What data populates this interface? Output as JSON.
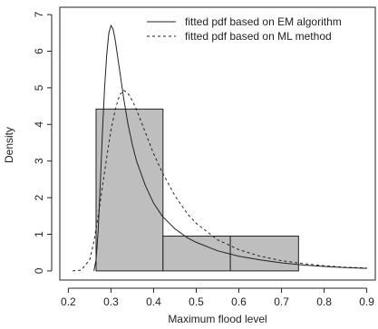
{
  "chart_data": {
    "type": "histogram",
    "xlabel": "Maximum flood level",
    "ylabel": "Density",
    "xlim": [
      0.18,
      0.92
    ],
    "ylim": [
      -0.25,
      7.2
    ],
    "x_ticks": [
      0.2,
      0.3,
      0.4,
      0.5,
      0.6,
      0.7,
      0.8,
      0.9
    ],
    "y_ticks": [
      0,
      1,
      2,
      3,
      4,
      5,
      6,
      7
    ],
    "grid": false,
    "legend_position": "top-right",
    "histogram": {
      "bins": [
        {
          "x0": 0.265,
          "x1": 0.422,
          "density": 4.42
        },
        {
          "x0": 0.422,
          "x1": 0.58,
          "density": 0.95
        },
        {
          "x0": 0.58,
          "x1": 0.74,
          "density": 0.95
        }
      ],
      "fill": "#bebebe",
      "stroke": "#222222"
    },
    "series": [
      {
        "name": "fitted pdf based on EM algorithm",
        "style": "solid",
        "x": [
          0.26,
          0.265,
          0.27,
          0.275,
          0.28,
          0.285,
          0.29,
          0.295,
          0.3,
          0.305,
          0.31,
          0.315,
          0.32,
          0.33,
          0.34,
          0.35,
          0.36,
          0.38,
          0.4,
          0.42,
          0.45,
          0.48,
          0.5,
          0.55,
          0.6,
          0.65,
          0.7,
          0.75,
          0.8,
          0.85,
          0.9
        ],
        "y": [
          0.0,
          0.3,
          1.1,
          2.4,
          3.8,
          5.0,
          5.9,
          6.5,
          6.7,
          6.6,
          6.3,
          5.9,
          5.5,
          4.7,
          4.0,
          3.45,
          3.0,
          2.35,
          1.85,
          1.5,
          1.15,
          0.9,
          0.78,
          0.55,
          0.4,
          0.3,
          0.22,
          0.16,
          0.12,
          0.09,
          0.07
        ]
      },
      {
        "name": "fitted pdf based on ML method",
        "style": "dashed",
        "x": [
          0.21,
          0.23,
          0.25,
          0.26,
          0.27,
          0.28,
          0.29,
          0.3,
          0.31,
          0.32,
          0.33,
          0.34,
          0.35,
          0.36,
          0.38,
          0.4,
          0.42,
          0.45,
          0.48,
          0.5,
          0.55,
          0.6,
          0.65,
          0.7,
          0.75,
          0.8,
          0.85,
          0.9
        ],
        "y": [
          0.0,
          0.02,
          0.3,
          0.8,
          1.5,
          2.3,
          3.1,
          3.85,
          4.4,
          4.8,
          4.93,
          4.85,
          4.65,
          4.4,
          3.8,
          3.2,
          2.7,
          2.05,
          1.55,
          1.3,
          0.85,
          0.58,
          0.4,
          0.28,
          0.2,
          0.14,
          0.1,
          0.08
        ]
      }
    ]
  }
}
